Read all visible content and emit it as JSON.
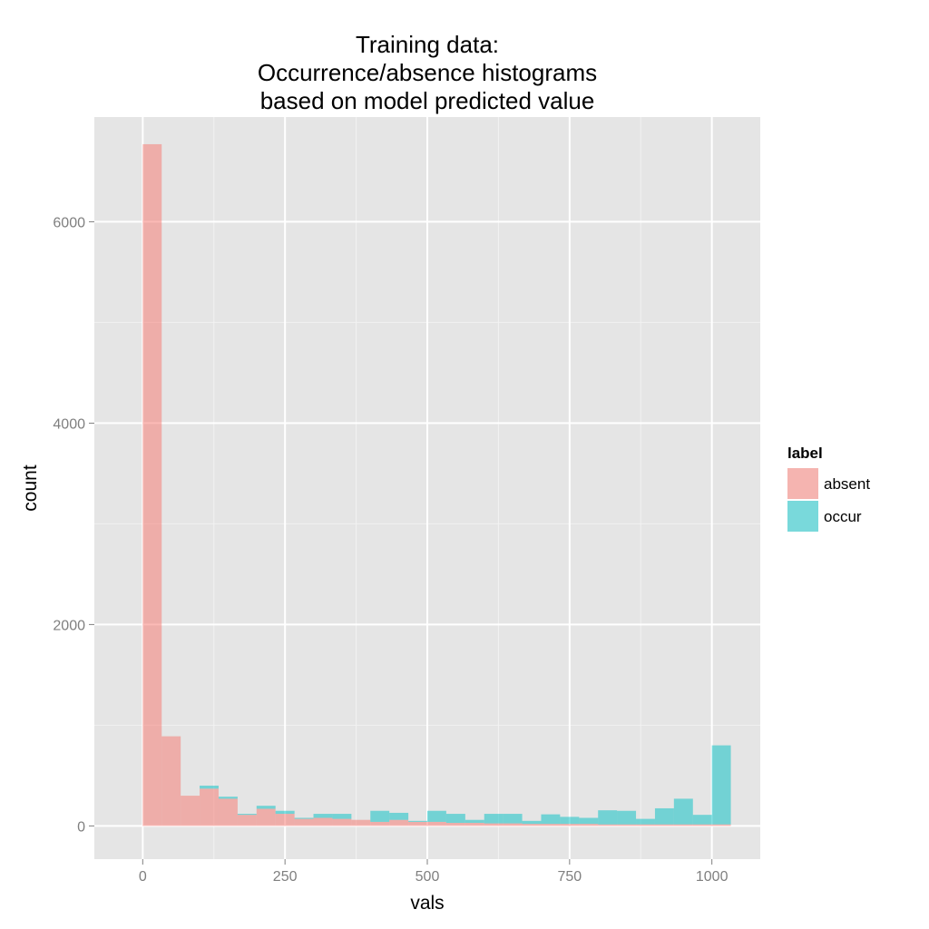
{
  "chart_data": {
    "type": "bar",
    "title_lines": [
      "Training data:",
      "Occurrence/absence histograms",
      "based on model predicted value"
    ],
    "xlabel": "vals",
    "ylabel": "count",
    "xlim": [
      -85,
      1085
    ],
    "ylim": [
      -330,
      7040
    ],
    "x_ticks": [
      0,
      250,
      500,
      750,
      1000
    ],
    "x_tick_labels": [
      "0",
      "250",
      "500",
      "750",
      "1000"
    ],
    "y_ticks": [
      0,
      2000,
      4000,
      6000
    ],
    "y_tick_labels": [
      "0",
      "2000",
      "4000",
      "6000"
    ],
    "stacked": true,
    "bins": [
      [
        0,
        33.3
      ],
      [
        33.3,
        66.7
      ],
      [
        66.7,
        100
      ],
      [
        100,
        133.3
      ],
      [
        133.3,
        166.7
      ],
      [
        166.7,
        200
      ],
      [
        200,
        233.3
      ],
      [
        233.3,
        266.7
      ],
      [
        266.7,
        300
      ],
      [
        300,
        333.3
      ],
      [
        333.3,
        366.7
      ],
      [
        366.7,
        400
      ],
      [
        400,
        433.3
      ],
      [
        433.3,
        466.7
      ],
      [
        466.7,
        500
      ],
      [
        500,
        533.3
      ],
      [
        533.3,
        566.7
      ],
      [
        566.7,
        600
      ],
      [
        600,
        633.3
      ],
      [
        633.3,
        666.7
      ],
      [
        666.7,
        700
      ],
      [
        700,
        733.3
      ],
      [
        733.3,
        766.7
      ],
      [
        766.7,
        800
      ],
      [
        800,
        833.3
      ],
      [
        833.3,
        866.7
      ],
      [
        866.7,
        900
      ],
      [
        900,
        933.3
      ],
      [
        933.3,
        966.7
      ],
      [
        966.7,
        1000
      ],
      [
        1000,
        1033.3
      ]
    ],
    "series": [
      {
        "name": "absent",
        "color": "#f8766d",
        "values": [
          6770,
          890,
          300,
          370,
          270,
          110,
          170,
          120,
          70,
          80,
          70,
          60,
          40,
          60,
          40,
          40,
          30,
          30,
          25,
          25,
          20,
          20,
          20,
          20,
          15,
          15,
          15,
          15,
          15,
          15,
          15
        ]
      },
      {
        "name": "occur",
        "color": "#00bfc4",
        "values": [
          0,
          0,
          0,
          30,
          20,
          10,
          30,
          30,
          10,
          40,
          50,
          0,
          110,
          70,
          10,
          110,
          90,
          30,
          95,
          95,
          30,
          95,
          70,
          60,
          140,
          135,
          55,
          160,
          255,
          95,
          785
        ]
      }
    ],
    "legend": {
      "title": "label",
      "position": "right",
      "entries": [
        {
          "label": "absent",
          "color": "#f8766d"
        },
        {
          "label": "occur",
          "color": "#00bfc4"
        }
      ]
    },
    "grid": true,
    "panel_background": "#e5e5e5",
    "grid_color": "#ffffff",
    "fill_opacity": 0.5
  }
}
